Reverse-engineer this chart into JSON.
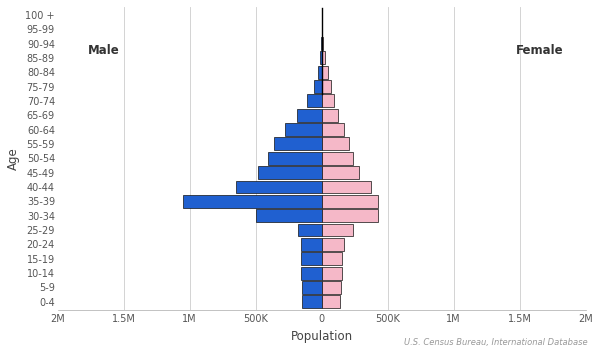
{
  "age_groups": [
    "0-4",
    "5-9",
    "10-14",
    "15-19",
    "20-24",
    "25-29",
    "30-34",
    "35-39",
    "40-44",
    "45-49",
    "50-54",
    "55-59",
    "60-64",
    "65-69",
    "70-74",
    "75-79",
    "80-84",
    "85-89",
    "90-94",
    "95-99",
    "100 +"
  ],
  "male": [
    150000,
    150000,
    160000,
    160000,
    160000,
    180000,
    500000,
    1050000,
    650000,
    480000,
    410000,
    360000,
    280000,
    190000,
    110000,
    60000,
    30000,
    12000,
    4000,
    1500,
    400
  ],
  "female": [
    140000,
    145000,
    155000,
    155000,
    165000,
    240000,
    430000,
    430000,
    370000,
    280000,
    240000,
    210000,
    165000,
    125000,
    90000,
    70000,
    45000,
    22000,
    9000,
    3000,
    800
  ],
  "male_color": "#2060d0",
  "female_color": "#f5b8c8",
  "male_edgecolor": "#111111",
  "female_edgecolor": "#111111",
  "xlabel": "Population",
  "ylabel": "Age",
  "xlim": 2000000,
  "male_label": "Male",
  "female_label": "Female",
  "source": "U.S. Census Bureau, International Database",
  "background_color": "#ffffff",
  "bar_height": 0.9
}
